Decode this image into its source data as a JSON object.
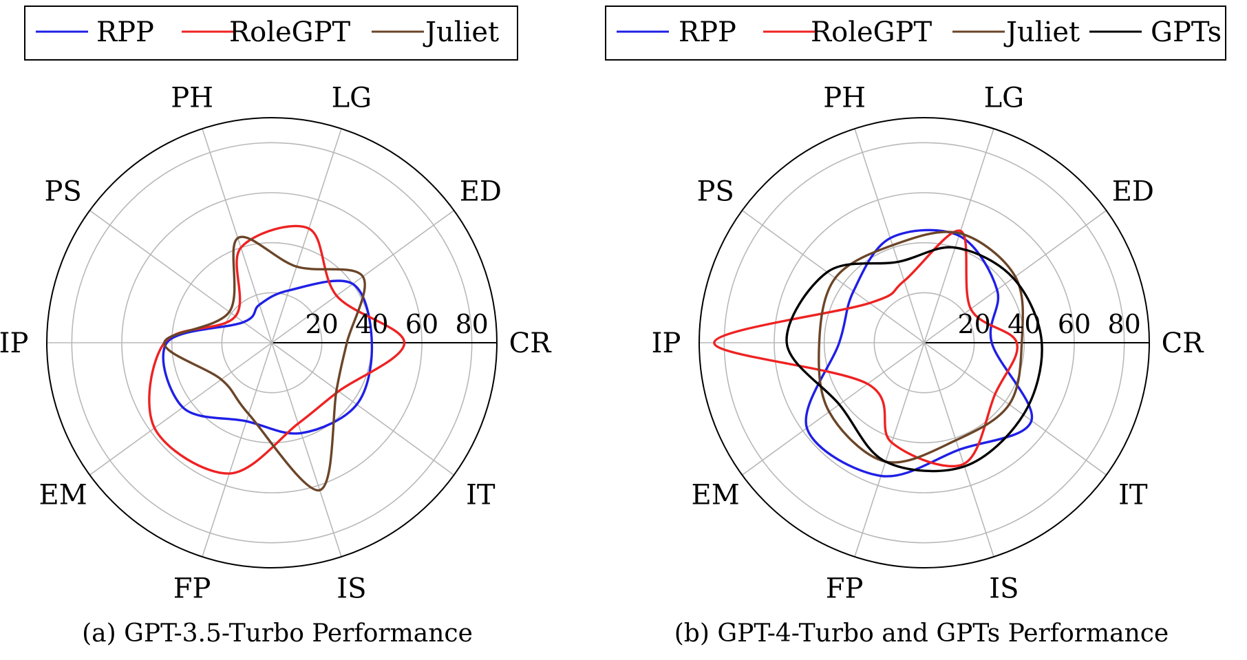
{
  "chart_data": [
    {
      "type": "radar",
      "caption": "(a) GPT-3.5-Turbo Performance",
      "axes": [
        "CR",
        "ED",
        "LG",
        "PH",
        "PS",
        "IP",
        "EM",
        "FP",
        "IS",
        "IT"
      ],
      "radial_ticks": [
        "20",
        "40",
        "60",
        "80"
      ],
      "rlim": [
        0,
        90
      ],
      "grid": true,
      "legend_position": "top",
      "series": [
        {
          "name": "RPP",
          "color": "#1f1fe6",
          "values": [
            40,
            40,
            22,
            16,
            14,
            42,
            44,
            33,
            38,
            42
          ]
        },
        {
          "name": "RoleGPT",
          "color": "#ee2222",
          "values": [
            53,
            32,
            48,
            40,
            18,
            43,
            58,
            55,
            34,
            33
          ]
        },
        {
          "name": "Juliet",
          "color": "#6b4528",
          "values": [
            30,
            45,
            32,
            44,
            21,
            43,
            25,
            30,
            62,
            32
          ]
        }
      ]
    },
    {
      "type": "radar",
      "caption": "(b) GPT-4-Turbo and GPTs Performance",
      "axes": [
        "CR",
        "ED",
        "LG",
        "PH",
        "PS",
        "IP",
        "EM",
        "FP",
        "IS",
        "IT"
      ],
      "radial_ticks": [
        "20",
        "40",
        "60",
        "80"
      ],
      "rlim": [
        0,
        90
      ],
      "grid": true,
      "legend_position": "top",
      "series": [
        {
          "name": "RPP",
          "color": "#1f1fe6",
          "values": [
            27,
            36,
            45,
            44,
            35,
            34,
            58,
            56,
            45,
            53
          ]
        },
        {
          "name": "RoleGPT",
          "color": "#ee2222",
          "values": [
            37,
            23,
            47,
            26,
            27,
            84,
            28,
            42,
            51,
            35
          ]
        },
        {
          "name": "Juliet",
          "color": "#6b4528",
          "values": [
            39,
            45,
            46,
            41,
            44,
            42,
            47,
            50,
            41,
            42
          ]
        },
        {
          "name": "GPTs",
          "color": "#000000",
          "values": [
            47,
            44,
            40,
            34,
            48,
            55,
            42,
            50,
            52,
            49
          ]
        }
      ]
    }
  ]
}
